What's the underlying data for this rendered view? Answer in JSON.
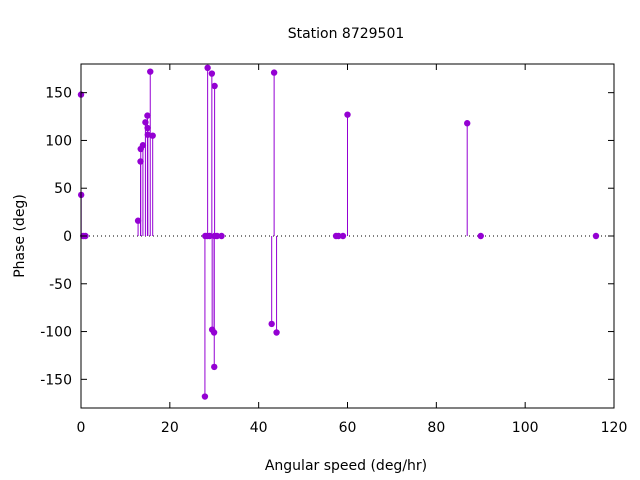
{
  "chart_data": {
    "type": "scatter",
    "title": "Station 8729501",
    "xlabel": "Angular speed (deg/hr)",
    "ylabel": "Phase (deg)",
    "xlim": [
      0,
      120
    ],
    "ylim": [
      -180,
      180
    ],
    "xticks": [
      0,
      20,
      40,
      60,
      80,
      100,
      120
    ],
    "yticks": [
      -150,
      -100,
      -50,
      0,
      50,
      100,
      150
    ],
    "grid": false,
    "zero_line": "dotted",
    "style": "impulses-with-points",
    "color": "#9400d3",
    "series": [
      {
        "points": [
          [
            0.0,
            148
          ],
          [
            0.04,
            43
          ],
          [
            0.5,
            0
          ],
          [
            1.0,
            0
          ],
          [
            12.85,
            16
          ],
          [
            13.4,
            78
          ],
          [
            13.45,
            91
          ],
          [
            13.94,
            95
          ],
          [
            14.5,
            119
          ],
          [
            14.96,
            126
          ],
          [
            15.0,
            113
          ],
          [
            15.04,
            106
          ],
          [
            15.59,
            172
          ],
          [
            16.14,
            105
          ],
          [
            27.9,
            -168
          ],
          [
            27.97,
            0
          ],
          [
            28.44,
            0
          ],
          [
            28.51,
            176
          ],
          [
            28.98,
            0
          ],
          [
            29.46,
            170
          ],
          [
            29.53,
            -98
          ],
          [
            29.96,
            -101
          ],
          [
            30.08,
            157
          ],
          [
            30.0,
            -137
          ],
          [
            30.08,
            0
          ],
          [
            30.63,
            0
          ],
          [
            31.64,
            0
          ],
          [
            42.93,
            -92
          ],
          [
            43.48,
            171
          ],
          [
            44.03,
            -101
          ],
          [
            57.42,
            0
          ],
          [
            57.97,
            0
          ],
          [
            58.98,
            0
          ],
          [
            60.0,
            127
          ],
          [
            86.95,
            118
          ],
          [
            90.0,
            0
          ],
          [
            115.94,
            0
          ]
        ]
      }
    ]
  }
}
